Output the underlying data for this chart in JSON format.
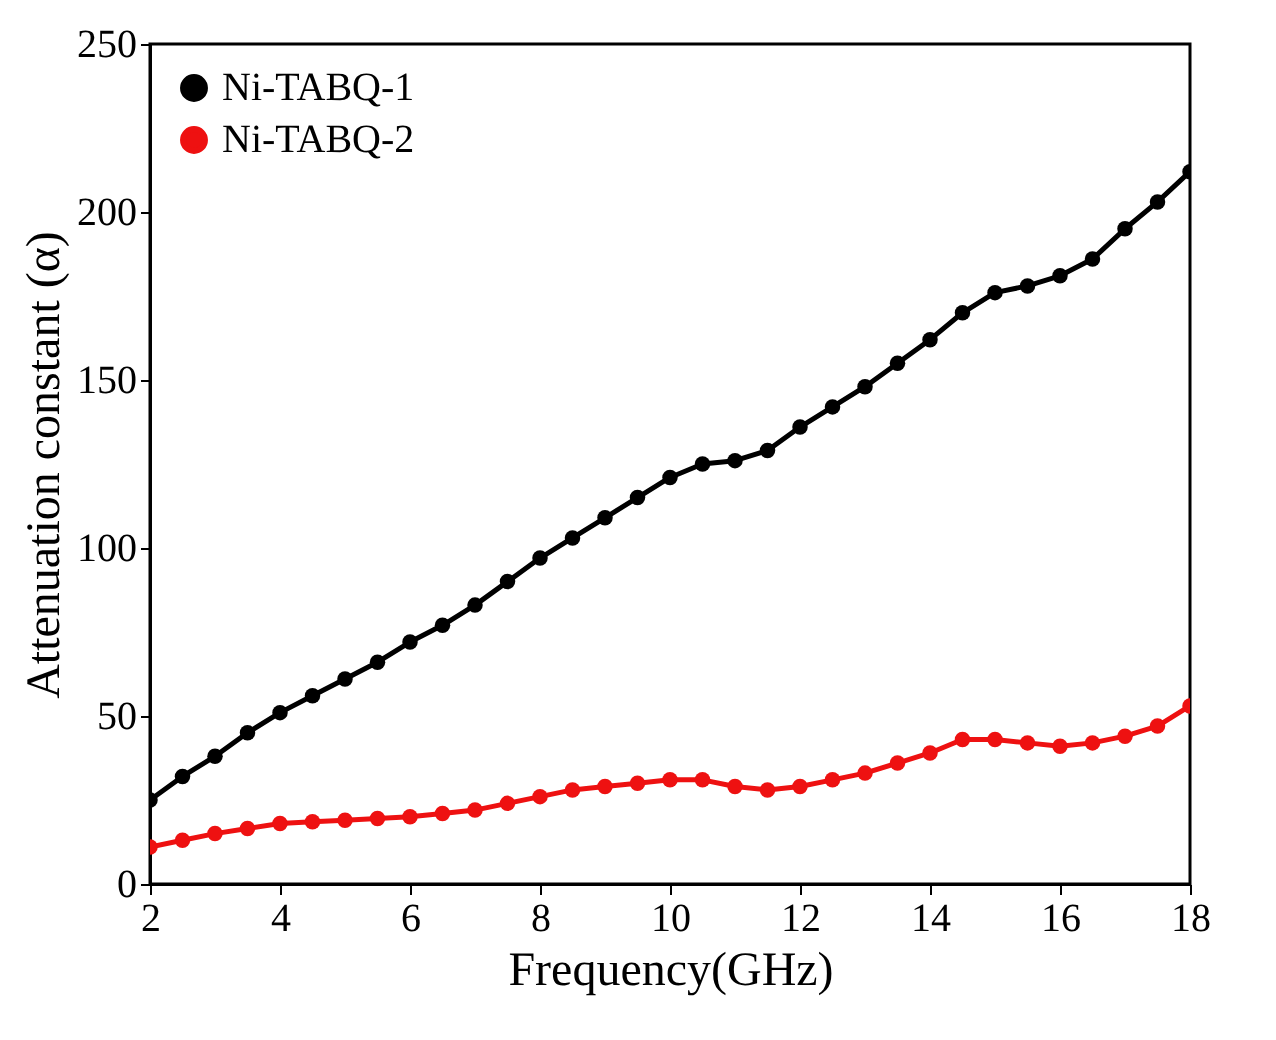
{
  "chart_data": {
    "type": "line",
    "xlabel": "Frequency(GHz)",
    "ylabel": "Attenuation constant (α)",
    "x": [
      2,
      2.5,
      3,
      3.5,
      4,
      4.5,
      5,
      5.5,
      6,
      6.5,
      7,
      7.5,
      8,
      8.5,
      9,
      9.5,
      10,
      10.5,
      11,
      11.5,
      12,
      12.5,
      13,
      13.5,
      14,
      14.5,
      15,
      15.5,
      16,
      16.5,
      17,
      17.5,
      18
    ],
    "series": [
      {
        "name": "Ni-TABQ-1",
        "color": "#000000",
        "values": [
          25,
          32,
          38,
          45,
          51,
          56,
          61,
          66,
          72,
          77,
          83,
          90,
          97,
          103,
          109,
          115,
          121,
          125,
          126,
          129,
          136,
          142,
          148,
          155,
          162,
          170,
          176,
          178,
          181,
          186,
          195,
          203,
          212
        ]
      },
      {
        "name": "Ni-TABQ-2",
        "color": "#ee1111",
        "values": [
          11,
          13,
          15,
          16.5,
          18,
          18.5,
          19,
          19.5,
          20,
          21,
          22,
          24,
          26,
          28,
          29,
          30,
          31,
          31,
          29,
          28,
          29,
          31,
          33,
          36,
          39,
          43,
          43,
          42,
          41,
          42,
          44,
          47,
          53
        ]
      }
    ],
    "xlim": [
      2,
      18
    ],
    "xticks": [
      2,
      4,
      6,
      8,
      10,
      12,
      14,
      16,
      18
    ],
    "ylim": [
      0,
      250
    ],
    "yticks": [
      0,
      50,
      100,
      150,
      200,
      250
    ],
    "legend": "top left",
    "marker": "circle",
    "line_style": "solid",
    "grid": false
  }
}
